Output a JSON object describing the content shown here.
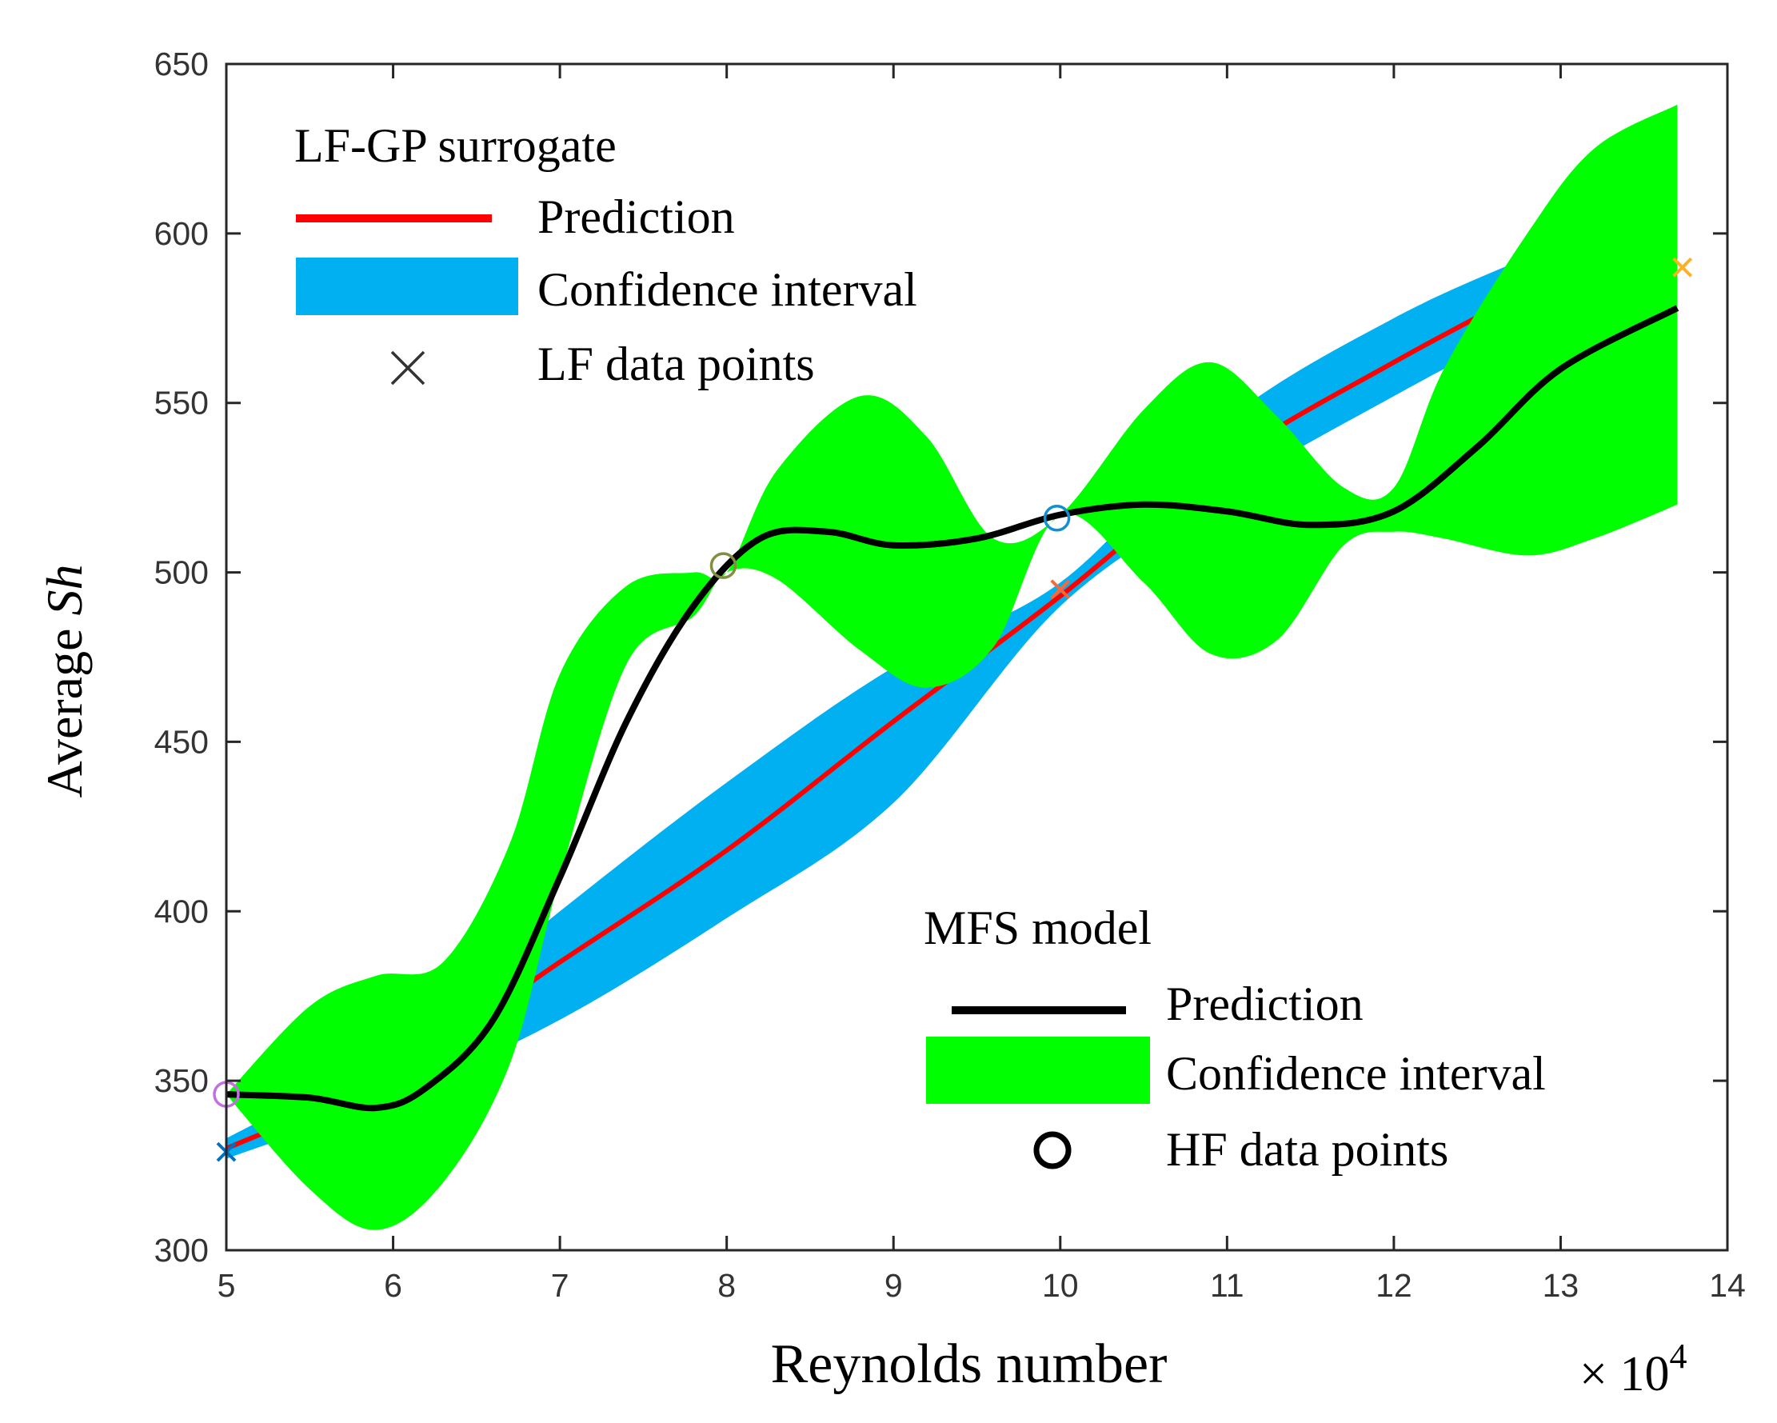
{
  "chart_data": {
    "type": "line",
    "title": "",
    "xlabel": "Reynolds number",
    "x_multiplier": "× 10",
    "x_exponent": "4",
    "ylabel_prefix": "Average ",
    "ylabel_italic": "Sh",
    "xlim": [
      5,
      14
    ],
    "ylim": [
      300,
      650
    ],
    "xticks": [
      5,
      6,
      7,
      8,
      9,
      10,
      11,
      12,
      13,
      14
    ],
    "yticks": [
      300,
      350,
      400,
      450,
      500,
      550,
      600,
      650
    ],
    "grid": false,
    "legends": {
      "lf": {
        "title": "LF-GP surrogate",
        "placement": "top-left",
        "entries": [
          "Prediction",
          "Confidence interval",
          "LF data points"
        ]
      },
      "mfs": {
        "title": "MFS model",
        "placement": "bottom-right",
        "entries": [
          "Prediction",
          "Confidence interval",
          "HF data points"
        ]
      }
    },
    "series": [
      {
        "name": "LF-GP surrogate prediction",
        "color": "#ff0000",
        "x": [
          5,
          6,
          7,
          8,
          9,
          10,
          11,
          12,
          12.8
        ],
        "y": [
          330,
          352,
          385,
          418,
          456,
          493,
          533,
          562,
          583
        ]
      },
      {
        "name": "LF-GP surrogate confidence interval",
        "color": "#00b0f0",
        "x": [
          5,
          6,
          7,
          8,
          9,
          10,
          11,
          12,
          12.8
        ],
        "lower": [
          327,
          345,
          368,
          398,
          432,
          490,
          524,
          552,
          573
        ],
        "upper": [
          333,
          360,
          400,
          438,
          472,
          497,
          545,
          575,
          593
        ]
      },
      {
        "name": "MFS model prediction",
        "color": "#000000",
        "x": [
          5,
          5.5,
          5.9,
          6.2,
          6.6,
          7,
          7.4,
          7.8,
          8.2,
          8.6,
          9,
          9.5,
          10,
          10.5,
          11,
          11.5,
          12,
          12.5,
          13,
          13.7
        ],
        "y": [
          346,
          345,
          342,
          348,
          368,
          410,
          456,
          490,
          510,
          512,
          508,
          510,
          517,
          520,
          518,
          514,
          518,
          537,
          560,
          578
        ]
      },
      {
        "name": "MFS model confidence interval",
        "color": "#00ff00",
        "x": [
          5,
          5.5,
          5.9,
          6.3,
          6.7,
          7,
          7.4,
          7.8,
          8,
          8.3,
          8.8,
          9.2,
          9.6,
          10,
          10.5,
          10.9,
          11.3,
          11.7,
          12,
          12.3,
          12.8,
          13.2,
          13.7
        ],
        "lower": [
          346,
          318,
          306,
          320,
          355,
          410,
          473,
          487,
          500,
          498,
          477,
          466,
          478,
          517,
          497,
          476,
          480,
          508,
          512,
          510,
          505,
          510,
          520
        ],
        "upper": [
          346,
          372,
          381,
          385,
          420,
          470,
          496,
          500,
          500,
          530,
          552,
          540,
          510,
          517,
          548,
          562,
          546,
          525,
          525,
          560,
          600,
          625,
          638
        ]
      },
      {
        "name": "LF data points",
        "marker": "x",
        "points": [
          {
            "x": 5,
            "y": 329,
            "color": "#0070c0"
          },
          {
            "x": 10,
            "y": 495,
            "color": "#ff6633"
          },
          {
            "x": 13.73,
            "y": 590,
            "color": "#ffb020"
          }
        ]
      },
      {
        "name": "HF data points",
        "marker": "o",
        "points": [
          {
            "x": 5,
            "y": 346,
            "color": "#c070e0"
          },
          {
            "x": 7.98,
            "y": 502,
            "color": "#809040"
          },
          {
            "x": 9.98,
            "y": 516,
            "color": "#1090d0"
          }
        ]
      }
    ]
  }
}
